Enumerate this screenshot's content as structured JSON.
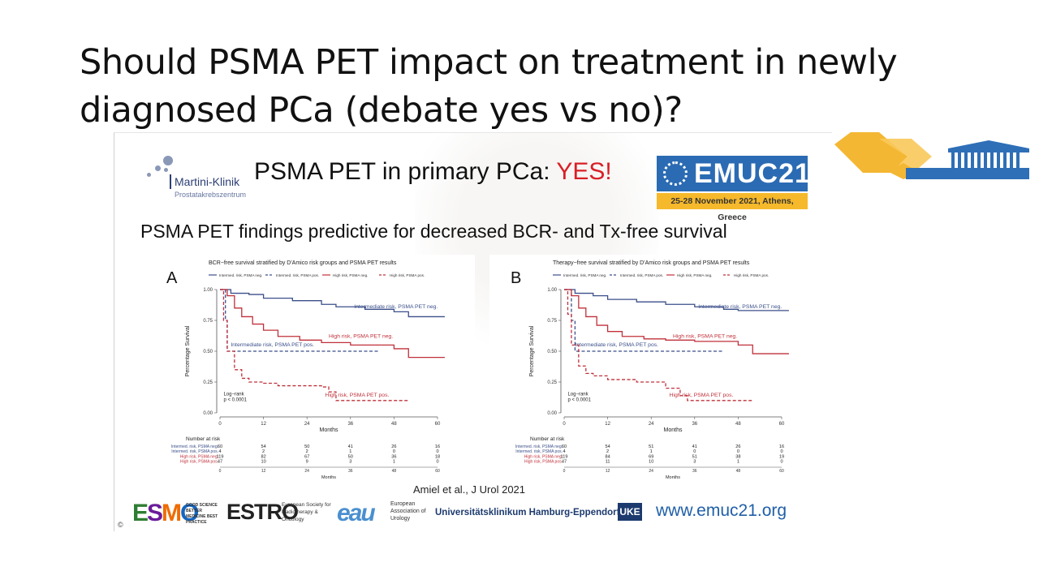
{
  "title": "Should PSMA PET impact on treatment in newly diagnosed PCa (debate yes vs no)?",
  "slide": {
    "logo_name": "Martini-Klinik",
    "logo_sub": "Prostatakrebszentrum",
    "heading_prefix": "PSMA PET in primary PCa: ",
    "heading_yes": "YES!",
    "badge_name": "EMUC21",
    "badge_date": "25-28 November 2021, Athens, Greece",
    "subheading": "PSMA PET findings predictive for decreased BCR- and Tx-free survival",
    "citation": "Amiel et al., J Urol 2021",
    "footer": {
      "esmo": "ESMO",
      "esmo_tag": "GOOD SCIENCE BETTER MEDICINE BEST PRACTICE",
      "estro": "ESTRO",
      "estro_tag": "European Society for Radiotherapy & Oncology",
      "eau": "eau",
      "eau_tag": "European Association of Urology",
      "uke": "Universitätsklinikum Hamburg-Eppendorf",
      "uke_box": "UKE",
      "url": "www.emuc21.org",
      "copyright": "©"
    }
  },
  "chart_data": [
    {
      "type": "line",
      "panel_label": "A",
      "title": "BCR−free survival stratified by D'Amico risk groups and PSMA PET results",
      "xlabel": "Months",
      "ylabel": "Percentage Survival",
      "xlim": [
        0,
        60
      ],
      "ylim": [
        0,
        1
      ],
      "x_ticks": [
        0,
        12,
        24,
        36,
        48,
        60
      ],
      "y_ticks": [
        "0.00",
        "0.25",
        "0.50",
        "0.75",
        "1.00"
      ],
      "annotation": "Log−rank\np < 0.0001",
      "series": [
        {
          "name": "Intermed. risk, PSMA neg.",
          "label": "Intermediate risk, PSMA PET neg.",
          "color": "#3b4f8a",
          "dash": false,
          "points": [
            [
              0,
              1
            ],
            [
              3,
              0.97
            ],
            [
              8,
              0.96
            ],
            [
              12,
              0.93
            ],
            [
              20,
              0.91
            ],
            [
              28,
              0.88
            ],
            [
              32,
              0.86
            ],
            [
              40,
              0.84
            ],
            [
              48,
              0.82
            ],
            [
              52,
              0.78
            ],
            [
              62,
              0.78
            ]
          ]
        },
        {
          "name": "Intermed. risk, PSMA pos.",
          "label": "Intermediate risk, PSMA PET pos.",
          "color": "#3b4f8a",
          "dash": true,
          "points": [
            [
              0,
              1
            ],
            [
              1.5,
              1
            ],
            [
              1.5,
              0.75
            ],
            [
              2,
              0.75
            ],
            [
              2,
              0.5
            ],
            [
              44,
              0.5
            ]
          ]
        },
        {
          "name": "High risk, PSMA neg.",
          "label": "High risk, PSMA PET neg.",
          "color": "#c0303a",
          "dash": false,
          "points": [
            [
              0,
              1
            ],
            [
              2,
              0.95
            ],
            [
              4,
              0.85
            ],
            [
              6,
              0.78
            ],
            [
              9,
              0.72
            ],
            [
              12,
              0.67
            ],
            [
              16,
              0.62
            ],
            [
              22,
              0.59
            ],
            [
              28,
              0.57
            ],
            [
              36,
              0.55
            ],
            [
              48,
              0.52
            ],
            [
              52,
              0.45
            ],
            [
              62,
              0.45
            ]
          ]
        },
        {
          "name": "High risk, PSMA pos.",
          "label": "High risk, PSMA PET pos.",
          "color": "#c0303a",
          "dash": true,
          "points": [
            [
              0,
              1
            ],
            [
              1,
              0.75
            ],
            [
              2,
              0.5
            ],
            [
              4,
              0.35
            ],
            [
              6,
              0.28
            ],
            [
              8,
              0.25
            ],
            [
              12,
              0.24
            ],
            [
              16,
              0.22
            ],
            [
              28,
              0.21
            ],
            [
              30,
              0.17
            ],
            [
              32,
              0.1
            ],
            [
              52,
              0.1
            ]
          ]
        }
      ],
      "risk_table": {
        "header": "Number at risk",
        "rows": [
          {
            "label": "Intermed. risk, PSMA neg.",
            "color": "#3b4f8a",
            "values": [
              "60",
              "54",
              "50",
              "41",
              "26",
              "16"
            ]
          },
          {
            "label": "Intermed. risk, PSMA pos.",
            "color": "#3b4f8a",
            "values": [
              "4",
              "2",
              "2",
              "1",
              "0",
              "0"
            ]
          },
          {
            "label": "High risk, PSMA neg.",
            "color": "#c0303a",
            "values": [
              "119",
              "82",
              "67",
              "50",
              "36",
              "18"
            ]
          },
          {
            "label": "High risk, PSMA pos.",
            "color": "#c0303a",
            "values": [
              "47",
              "10",
              "9",
              "3",
              "1",
              "0"
            ]
          }
        ]
      }
    },
    {
      "type": "line",
      "panel_label": "B",
      "title": "Therapy−free survival stratified by D'Amico risk groups and PSMA PET results",
      "xlabel": "Months",
      "ylabel": "Percentage Survival",
      "xlim": [
        0,
        60
      ],
      "ylim": [
        0,
        1
      ],
      "x_ticks": [
        0,
        12,
        24,
        36,
        48,
        60
      ],
      "y_ticks": [
        "0.00",
        "0.25",
        "0.50",
        "0.75",
        "1.00"
      ],
      "annotation": "Log−rank\np < 0.0001",
      "series": [
        {
          "name": "Intermed. risk, PSMA neg.",
          "label": "Intermediate risk, PSMA PET neg.",
          "color": "#3b4f8a",
          "dash": false,
          "points": [
            [
              0,
              1
            ],
            [
              3,
              0.97
            ],
            [
              8,
              0.95
            ],
            [
              12,
              0.92
            ],
            [
              20,
              0.9
            ],
            [
              28,
              0.88
            ],
            [
              36,
              0.86
            ],
            [
              44,
              0.84
            ],
            [
              48,
              0.83
            ],
            [
              62,
              0.83
            ]
          ]
        },
        {
          "name": "Intermed. risk, PSMA pos.",
          "label": "Intermediate risk, PSMA PET pos.",
          "color": "#3b4f8a",
          "dash": true,
          "points": [
            [
              0,
              1
            ],
            [
              2,
              1
            ],
            [
              2,
              0.75
            ],
            [
              3,
              0.75
            ],
            [
              3,
              0.5
            ],
            [
              44,
              0.5
            ]
          ]
        },
        {
          "name": "High risk, PSMA neg.",
          "label": "High risk, PSMA PET neg.",
          "color": "#c0303a",
          "dash": false,
          "points": [
            [
              0,
              1
            ],
            [
              2,
              0.95
            ],
            [
              4,
              0.85
            ],
            [
              6,
              0.78
            ],
            [
              9,
              0.71
            ],
            [
              12,
              0.66
            ],
            [
              16,
              0.62
            ],
            [
              22,
              0.6
            ],
            [
              28,
              0.59
            ],
            [
              36,
              0.58
            ],
            [
              48,
              0.55
            ],
            [
              52,
              0.48
            ],
            [
              62,
              0.48
            ]
          ]
        },
        {
          "name": "High risk, PSMA pos.",
          "label": "High risk, PSMA PET pos.",
          "color": "#c0303a",
          "dash": true,
          "points": [
            [
              0,
              1
            ],
            [
              1,
              0.8
            ],
            [
              2,
              0.55
            ],
            [
              4,
              0.38
            ],
            [
              6,
              0.32
            ],
            [
              8,
              0.3
            ],
            [
              12,
              0.27
            ],
            [
              20,
              0.25
            ],
            [
              28,
              0.2
            ],
            [
              32,
              0.14
            ],
            [
              34,
              0.1
            ],
            [
              52,
              0.1
            ]
          ]
        }
      ],
      "risk_table": {
        "header": "Number at risk",
        "rows": [
          {
            "label": "Intermed. risk, PSMA neg.",
            "color": "#3b4f8a",
            "values": [
              "60",
              "54",
              "51",
              "41",
              "26",
              "16"
            ]
          },
          {
            "label": "Intermed. risk, PSMA pos.",
            "color": "#3b4f8a",
            "values": [
              "4",
              "2",
              "1",
              "0",
              "0",
              "0"
            ]
          },
          {
            "label": "High risk, PSMA neg.",
            "color": "#c0303a",
            "values": [
              "119",
              "84",
              "69",
              "51",
              "38",
              "19"
            ]
          },
          {
            "label": "High risk, PSMA pos.",
            "color": "#c0303a",
            "values": [
              "47",
              "11",
              "10",
              "3",
              "1",
              "0"
            ]
          }
        ]
      }
    }
  ]
}
